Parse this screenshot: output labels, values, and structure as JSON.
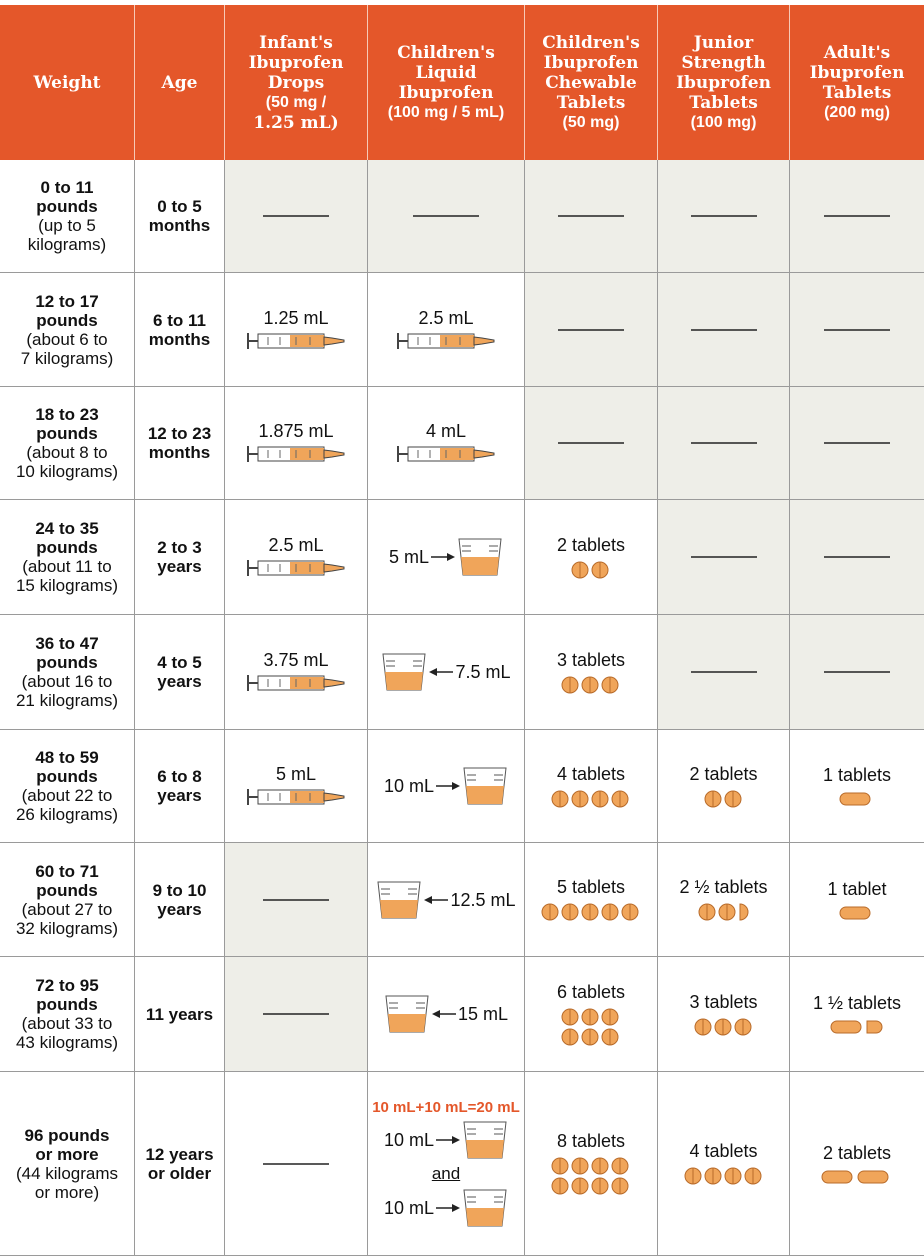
{
  "header": {
    "columns": [
      [
        "Weight"
      ],
      [
        "Age"
      ],
      [
        "Infant's",
        "Ibuprofen",
        "Drops",
        "(50 mg /",
        "1.25 mL)"
      ],
      [
        "Children's",
        "Liquid",
        "Ibuprofen",
        "(100 mg / 5 mL)"
      ],
      [
        "Children's",
        "Ibuprofen",
        "Chewable",
        "Tablets",
        "(50 mg)"
      ],
      [
        "Junior",
        "Strength",
        "Ibuprofen",
        "Tablets",
        "(100 mg)"
      ],
      [
        "Adult's",
        "Ibuprofen",
        "Tablets",
        "(200 mg)"
      ]
    ]
  },
  "rows": [
    {
      "weight": [
        "0 to 11",
        "pounds"
      ],
      "note": [
        "(up to 5",
        "kilograms)"
      ],
      "age": [
        "0 to 5",
        "months"
      ],
      "doses": [
        null,
        null,
        null,
        null,
        null
      ]
    },
    {
      "weight": [
        "12 to 17",
        "pounds"
      ],
      "note": [
        "(about 6 to",
        "7 kilograms)"
      ],
      "age": [
        "6 to 11",
        "months"
      ],
      "doses": [
        "1.25 mL",
        "2.5 mL",
        null,
        null,
        null
      ]
    },
    {
      "weight": [
        "18 to 23",
        "pounds"
      ],
      "note": [
        "(about 8 to",
        "10 kilograms)"
      ],
      "age": [
        "12 to 23",
        "months"
      ],
      "doses": [
        "1.875 mL",
        "4 mL",
        null,
        null,
        null
      ]
    },
    {
      "weight": [
        "24 to 35",
        "pounds"
      ],
      "note": [
        "(about 11 to",
        "15 kilograms)"
      ],
      "age": [
        "2 to 3",
        "years"
      ],
      "doses": [
        "2.5 mL",
        "5 mL",
        "2 tablets",
        null,
        null
      ]
    },
    {
      "weight": [
        "36 to 47",
        "pounds"
      ],
      "note": [
        "(about 16 to",
        "21 kilograms)"
      ],
      "age": [
        "4 to 5",
        "years"
      ],
      "doses": [
        "3.75 mL",
        "7.5 mL",
        "3 tablets",
        null,
        null
      ]
    },
    {
      "weight": [
        "48 to 59",
        "pounds"
      ],
      "note": [
        "(about 22 to",
        "26 kilograms)"
      ],
      "age": [
        "6 to 8",
        "years"
      ],
      "doses": [
        "5 mL",
        "10 mL",
        "4 tablets",
        "2 tablets",
        "1 tablets"
      ]
    },
    {
      "weight": [
        "60 to 71",
        "pounds"
      ],
      "note": [
        "(about 27 to",
        "32 kilograms)"
      ],
      "age": [
        "9 to 10",
        "years"
      ],
      "doses": [
        null,
        "12.5 mL",
        "5 tablets",
        "2 ½ tablets",
        "1 tablet"
      ]
    },
    {
      "weight": [
        "72 to 95",
        "pounds"
      ],
      "note": [
        "(about 33 to",
        "43 kilograms)"
      ],
      "age": [
        "11 years"
      ],
      "doses": [
        null,
        "15 mL",
        "6 tablets",
        "3 tablets",
        "1 ½ tablets"
      ]
    },
    {
      "weight": [
        "96 pounds",
        "or more"
      ],
      "note": [
        "(44 kilograms",
        "or more)"
      ],
      "age": [
        "12 years",
        "or older"
      ],
      "doses": [
        null,
        {
          "note": "10 mL+10 mL=20 mL",
          "first": "10 mL",
          "and": "and",
          "second": "10 mL"
        },
        "8 tablets",
        "4 tablets",
        "2 tablets"
      ]
    }
  ]
}
